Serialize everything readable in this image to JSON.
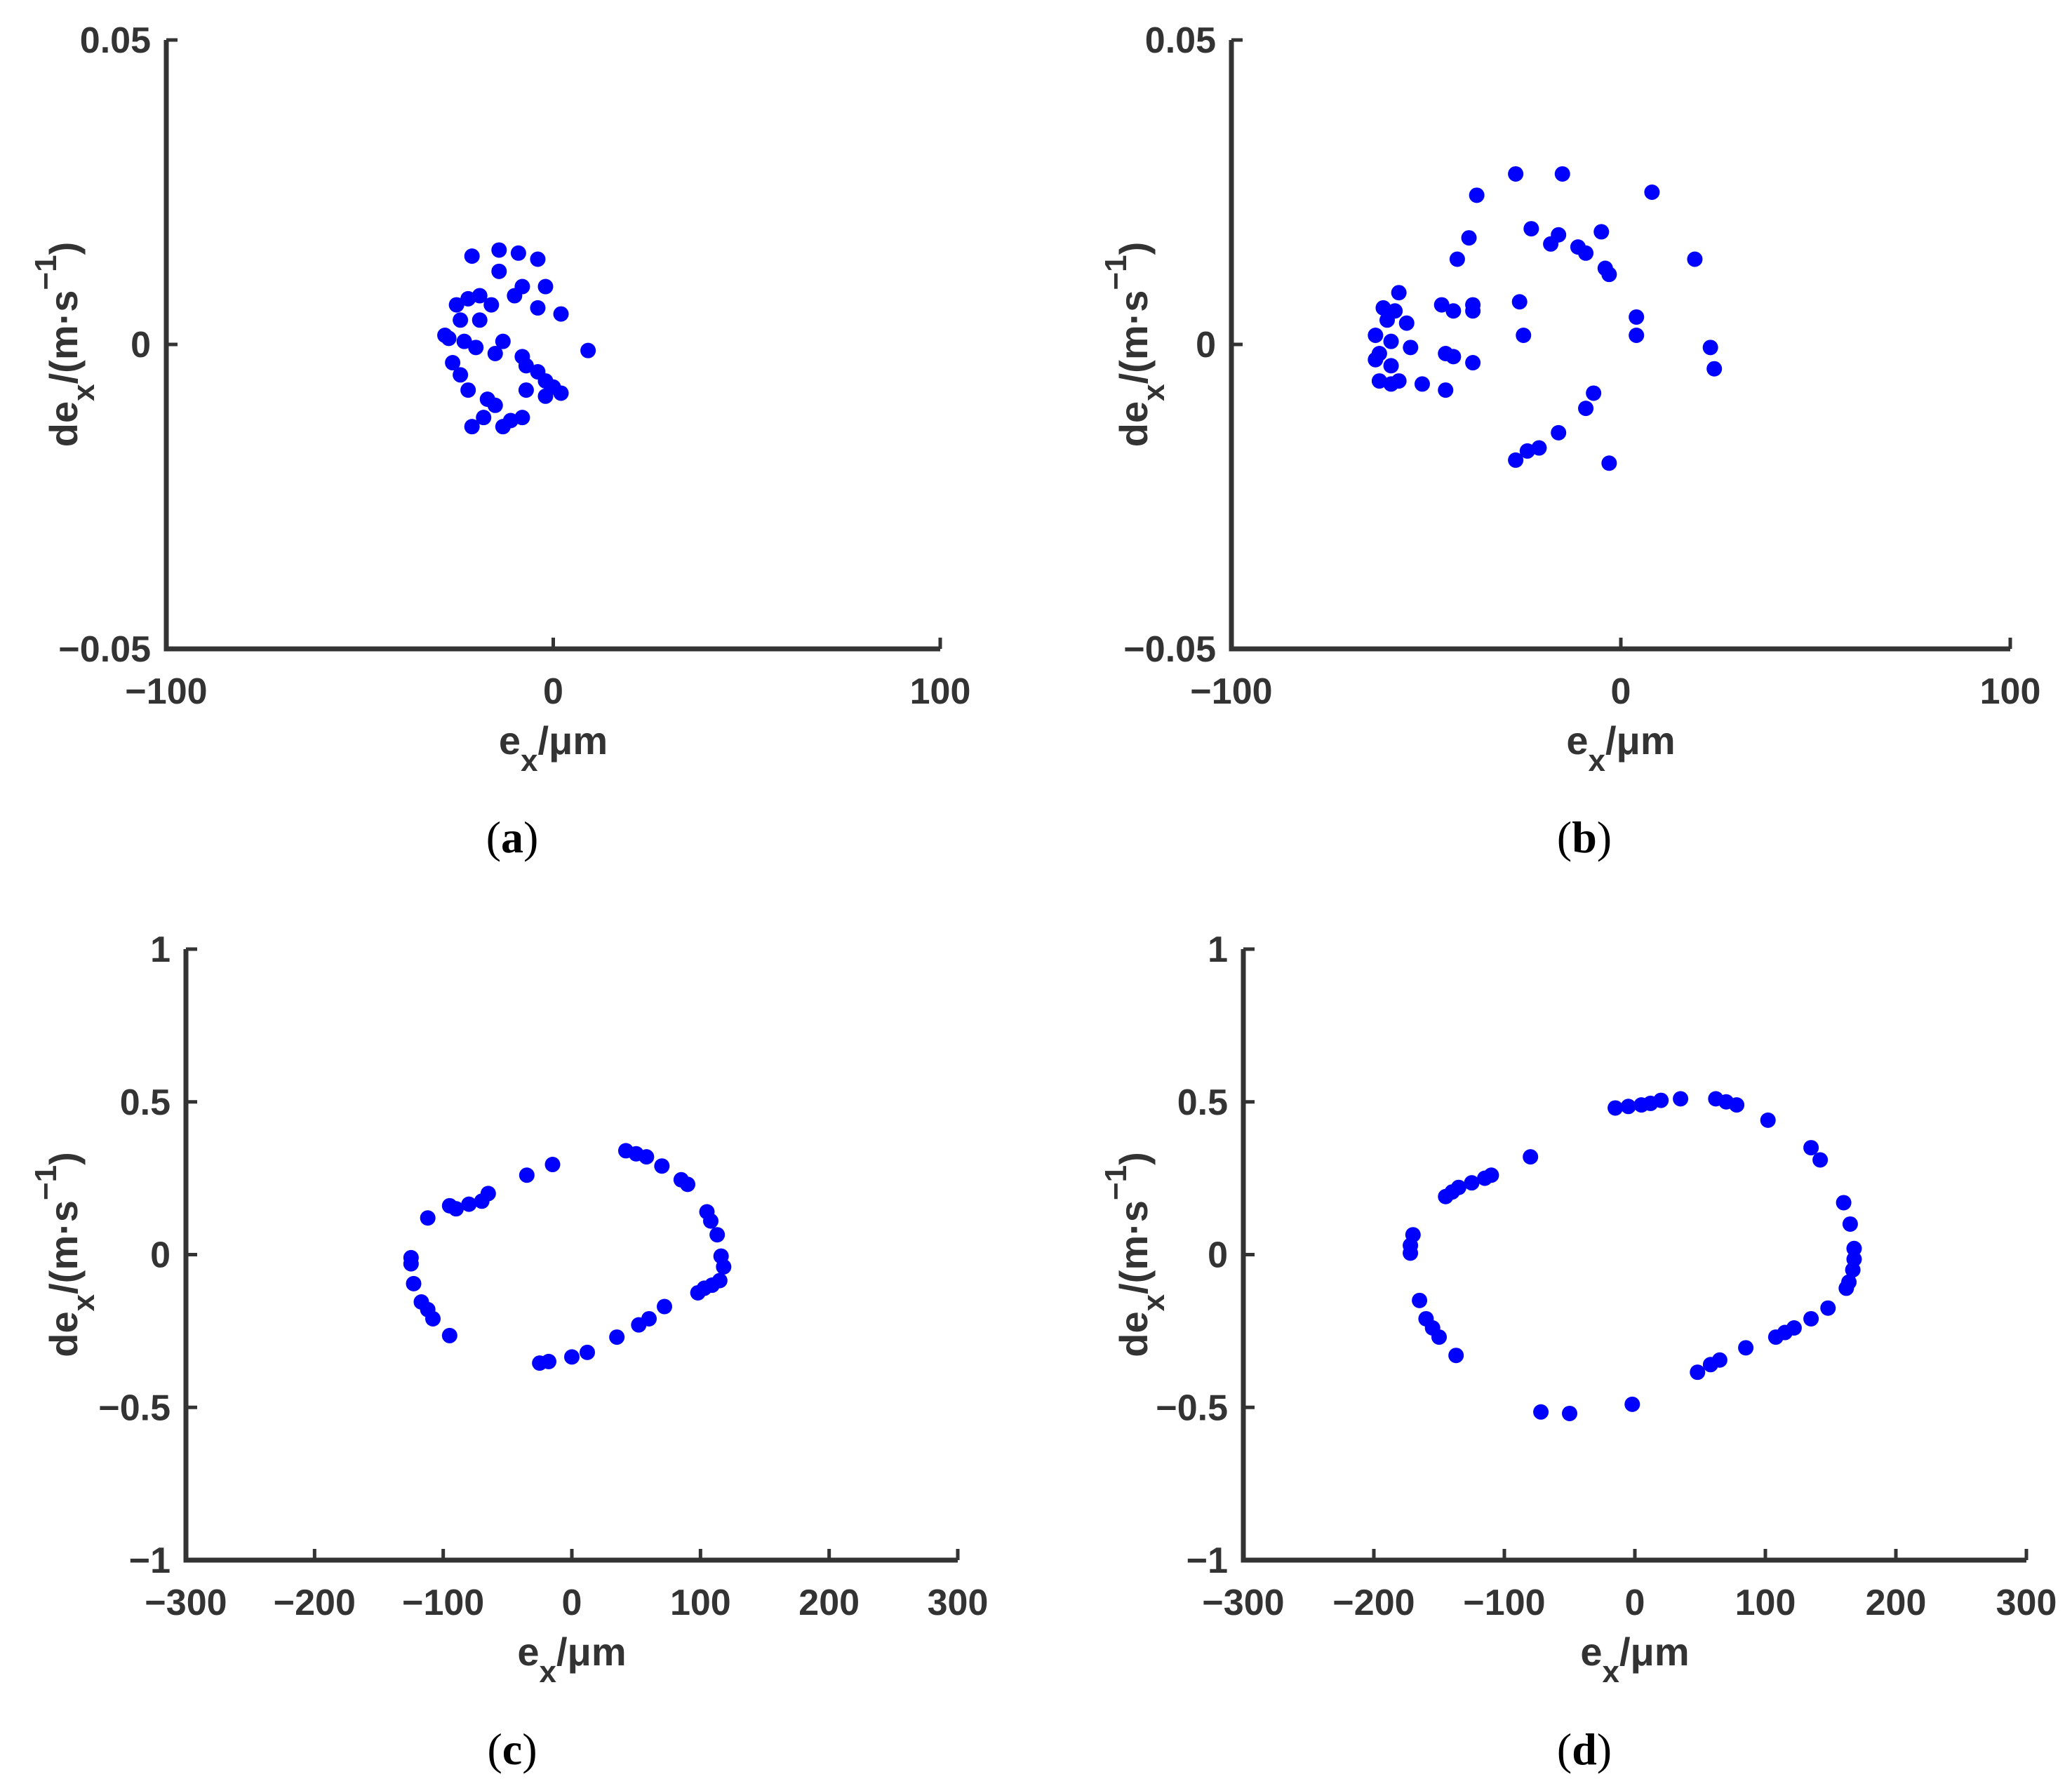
{
  "figure": {
    "point_color": "#0000ff",
    "axis_color": "#333333"
  },
  "chart_data": [
    {
      "panel": "(a)",
      "type": "scatter",
      "xlabel": "e_x/μm",
      "xlabel_parts": {
        "main": "e",
        "sub": "x",
        "suffix": "/μm"
      },
      "ylabel": "de_x/(m·s^-1)",
      "ylabel_parts": {
        "pre": "de",
        "sub": "x",
        "mid": "/(m·s",
        "sup": "−1",
        "post": ")"
      },
      "xlim": [
        -100,
        100
      ],
      "ylim": [
        -0.05,
        0.05
      ],
      "xticks": [
        -100,
        0,
        100
      ],
      "xtick_labels": [
        "−100",
        "0",
        "100"
      ],
      "yticks": [
        -0.05,
        0,
        0.05
      ],
      "ytick_labels": [
        "−0.05",
        "0",
        "0.05"
      ],
      "grid": false,
      "series": [
        {
          "points": [
            [
              -21,
              0.0145
            ],
            [
              -14,
              0.0155
            ],
            [
              -9,
              0.015
            ],
            [
              -4,
              0.014
            ],
            [
              -14,
              0.012
            ],
            [
              -8,
              0.0095
            ],
            [
              -2,
              0.0095
            ],
            [
              -25,
              0.0065
            ],
            [
              -22,
              0.0075
            ],
            [
              -19,
              0.008
            ],
            [
              -16,
              0.0065
            ],
            [
              -10,
              0.008
            ],
            [
              -4,
              0.006
            ],
            [
              2,
              0.005
            ],
            [
              -24,
              0.004
            ],
            [
              -19,
              0.004
            ],
            [
              -27,
              0.001
            ],
            [
              -23,
              0.0005
            ],
            [
              -20,
              -0.0005
            ],
            [
              -13,
              0.0005
            ],
            [
              -15,
              -0.0015
            ],
            [
              -8,
              -0.002
            ],
            [
              -7,
              -0.0035
            ],
            [
              -4,
              -0.0045
            ],
            [
              -2,
              -0.006
            ],
            [
              0,
              -0.007
            ],
            [
              2,
              -0.008
            ],
            [
              -24,
              -0.005
            ],
            [
              -22,
              -0.0075
            ],
            [
              -26,
              -0.003
            ],
            [
              -28,
              0.0015
            ],
            [
              -17,
              -0.009
            ],
            [
              -15,
              -0.01
            ],
            [
              -7,
              -0.0075
            ],
            [
              -2,
              -0.0085
            ],
            [
              -11,
              -0.0125
            ],
            [
              -8,
              -0.012
            ],
            [
              -18,
              -0.012
            ],
            [
              -21,
              -0.0135
            ],
            [
              -13,
              -0.0135
            ],
            [
              9,
              -0.001
            ]
          ]
        }
      ]
    },
    {
      "panel": "(b)",
      "type": "scatter",
      "xlabel": "e_x/μm",
      "xlabel_parts": {
        "main": "e",
        "sub": "x",
        "suffix": "/μm"
      },
      "ylabel": "de_x/(m·s^-1)",
      "ylabel_parts": {
        "pre": "de",
        "sub": "x",
        "mid": "/(m·s",
        "sup": "−1",
        "post": ")"
      },
      "xlim": [
        -100,
        100
      ],
      "ylim": [
        -0.05,
        0.05
      ],
      "xticks": [
        -100,
        0,
        100
      ],
      "xtick_labels": [
        "−100",
        "0",
        "100"
      ],
      "yticks": [
        -0.05,
        0,
        0.05
      ],
      "ytick_labels": [
        "−0.05",
        "0",
        "0.05"
      ],
      "grid": false,
      "series": [
        {
          "points": [
            [
              -27,
              0.028
            ],
            [
              -15,
              0.028
            ],
            [
              8,
              0.025
            ],
            [
              -37,
              0.0245
            ],
            [
              -23,
              0.019
            ],
            [
              -16,
              0.018
            ],
            [
              -18,
              0.0165
            ],
            [
              -11,
              0.016
            ],
            [
              -9,
              0.015
            ],
            [
              -5,
              0.0185
            ],
            [
              -4,
              0.0125
            ],
            [
              -3,
              0.0115
            ],
            [
              -39,
              0.0175
            ],
            [
              -42,
              0.014
            ],
            [
              19,
              0.014
            ],
            [
              -57,
              0.0085
            ],
            [
              -61,
              0.006
            ],
            [
              -58,
              0.0055
            ],
            [
              -60,
              0.004
            ],
            [
              -55,
              0.0035
            ],
            [
              -46,
              0.0065
            ],
            [
              -43,
              0.0055
            ],
            [
              -38,
              0.0065
            ],
            [
              -38,
              0.0055
            ],
            [
              -26,
              0.007
            ],
            [
              4,
              0.0045
            ],
            [
              -63,
              0.0015
            ],
            [
              -59,
              0.0005
            ],
            [
              -54,
              -0.0005
            ],
            [
              -62,
              -0.0015
            ],
            [
              -63,
              -0.0025
            ],
            [
              -59,
              -0.0035
            ],
            [
              -45,
              -0.0015
            ],
            [
              -43,
              -0.002
            ],
            [
              -38,
              -0.003
            ],
            [
              -25,
              0.0015
            ],
            [
              4,
              0.0015
            ],
            [
              23,
              -0.0005
            ],
            [
              24,
              -0.004
            ],
            [
              -62,
              -0.006
            ],
            [
              -59,
              -0.0065
            ],
            [
              -57,
              -0.006
            ],
            [
              -51,
              -0.0065
            ],
            [
              -45,
              -0.0075
            ],
            [
              -7,
              -0.008
            ],
            [
              -9,
              -0.0105
            ],
            [
              -16,
              -0.0145
            ],
            [
              -21,
              -0.017
            ],
            [
              -24,
              -0.0175
            ],
            [
              -27,
              -0.019
            ],
            [
              -3,
              -0.0195
            ]
          ]
        }
      ]
    },
    {
      "panel": "(c)",
      "type": "scatter",
      "xlabel": "e_x/μm",
      "xlabel_parts": {
        "main": "e",
        "sub": "x",
        "suffix": "/μm"
      },
      "ylabel": "de_x/(m·s^-1)",
      "ylabel_parts": {
        "pre": "de",
        "sub": "x",
        "mid": "/(m·s",
        "sup": "−1",
        "post": ")"
      },
      "xlim": [
        -300,
        300
      ],
      "ylim": [
        -1,
        1
      ],
      "xticks": [
        -300,
        -200,
        -100,
        0,
        100,
        200,
        300
      ],
      "xtick_labels": [
        "−300",
        "−200",
        "−100",
        "0",
        "100",
        "200",
        "300"
      ],
      "yticks": [
        -1,
        -0.5,
        0,
        0.5,
        1
      ],
      "ytick_labels": [
        "−1",
        "−0.5",
        "0",
        "0.5",
        "1"
      ],
      "grid": false,
      "series": [
        {
          "points": [
            [
              -15,
              0.295
            ],
            [
              -35,
              0.26
            ],
            [
              -65,
              0.2
            ],
            [
              -70,
              0.175
            ],
            [
              -80,
              0.165
            ],
            [
              -90,
              0.15
            ],
            [
              -95,
              0.16
            ],
            [
              -112,
              0.12
            ],
            [
              -125,
              -0.01
            ],
            [
              -125,
              -0.03
            ],
            [
              -123,
              -0.095
            ],
            [
              -117,
              -0.155
            ],
            [
              -112,
              -0.18
            ],
            [
              -108,
              -0.21
            ],
            [
              -95,
              -0.265
            ],
            [
              -25,
              -0.355
            ],
            [
              -18,
              -0.35
            ],
            [
              0,
              -0.335
            ],
            [
              12,
              -0.32
            ],
            [
              35,
              -0.27
            ],
            [
              52,
              -0.23
            ],
            [
              60,
              -0.21
            ],
            [
              72,
              -0.17
            ],
            [
              98,
              -0.125
            ],
            [
              103,
              -0.11
            ],
            [
              109,
              -0.1
            ],
            [
              115,
              -0.085
            ],
            [
              118,
              -0.04
            ],
            [
              116,
              -0.005
            ],
            [
              113,
              0.065
            ],
            [
              108,
              0.11
            ],
            [
              105,
              0.14
            ],
            [
              90,
              0.23
            ],
            [
              85,
              0.245
            ],
            [
              70,
              0.29
            ],
            [
              58,
              0.32
            ],
            [
              50,
              0.33
            ],
            [
              42,
              0.34
            ]
          ]
        }
      ]
    },
    {
      "panel": "(d)",
      "type": "scatter",
      "xlabel": "e_x/μm",
      "xlabel_parts": {
        "main": "e",
        "sub": "x",
        "suffix": "/μm"
      },
      "ylabel": "de_x/(m·s^-1)",
      "ylabel_parts": {
        "pre": "de",
        "sub": "x",
        "mid": "/(m·s",
        "sup": "−1",
        "post": ")"
      },
      "xlim": [
        -300,
        300
      ],
      "ylim": [
        -1,
        1
      ],
      "xticks": [
        -300,
        -200,
        -100,
        0,
        100,
        200,
        300
      ],
      "xtick_labels": [
        "−300",
        "−200",
        "−100",
        "0",
        "100",
        "200",
        "300"
      ],
      "yticks": [
        -1,
        -0.5,
        0,
        0.5,
        1
      ],
      "ytick_labels": [
        "−1",
        "−0.5",
        "0",
        "0.5",
        "1"
      ],
      "grid": false,
      "series": [
        {
          "points": [
            [
              -15,
              0.48
            ],
            [
              -5,
              0.485
            ],
            [
              5,
              0.49
            ],
            [
              12,
              0.495
            ],
            [
              20,
              0.505
            ],
            [
              35,
              0.51
            ],
            [
              62,
              0.51
            ],
            [
              70,
              0.5
            ],
            [
              78,
              0.49
            ],
            [
              102,
              0.44
            ],
            [
              135,
              0.35
            ],
            [
              142,
              0.31
            ],
            [
              160,
              0.17
            ],
            [
              165,
              0.1
            ],
            [
              168,
              0.02
            ],
            [
              168,
              -0.015
            ],
            [
              167,
              -0.05
            ],
            [
              164,
              -0.09
            ],
            [
              162,
              -0.11
            ],
            [
              148,
              -0.175
            ],
            [
              135,
              -0.21
            ],
            [
              122,
              -0.24
            ],
            [
              115,
              -0.255
            ],
            [
              108,
              -0.27
            ],
            [
              85,
              -0.305
            ],
            [
              65,
              -0.345
            ],
            [
              58,
              -0.36
            ],
            [
              48,
              -0.385
            ],
            [
              -2,
              -0.49
            ],
            [
              -50,
              -0.52
            ],
            [
              -72,
              -0.515
            ],
            [
              -80,
              0.32
            ],
            [
              -110,
              0.26
            ],
            [
              -115,
              0.25
            ],
            [
              -125,
              0.235
            ],
            [
              -135,
              0.22
            ],
            [
              -140,
              0.205
            ],
            [
              -145,
              0.19
            ],
            [
              -170,
              0.065
            ],
            [
              -172,
              0.03
            ],
            [
              -172,
              0.005
            ],
            [
              -165,
              -0.15
            ],
            [
              -160,
              -0.21
            ],
            [
              -155,
              -0.24
            ],
            [
              -150,
              -0.27
            ],
            [
              -137,
              -0.33
            ]
          ]
        }
      ]
    }
  ]
}
